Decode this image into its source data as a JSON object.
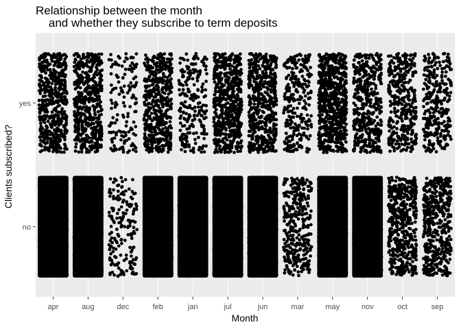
{
  "chart_data": {
    "type": "scatter",
    "subtype": "jitter",
    "title": "Relationship between the month\n    and whether they subscribe to term deposits",
    "xlabel": "Month",
    "ylabel": "Clients subscribed?",
    "categories": [
      "apr",
      "aug",
      "dec",
      "feb",
      "jan",
      "jul",
      "jun",
      "mar",
      "may",
      "nov",
      "oct",
      "sep"
    ],
    "y_categories": [
      "no",
      "yes"
    ],
    "grid": true,
    "legend": "none",
    "colors": {
      "panel": "#ebebeb",
      "grid": "#ffffff",
      "point": "#000000",
      "tick": "#4d4d4d"
    },
    "series": [
      {
        "y": "yes",
        "density": [
          0.55,
          0.55,
          0.12,
          0.5,
          0.2,
          0.6,
          0.55,
          0.25,
          0.75,
          0.45,
          0.35,
          0.3
        ]
      },
      {
        "y": "no",
        "density": [
          0.97,
          0.97,
          0.15,
          0.97,
          0.9,
          0.99,
          0.98,
          0.32,
          0.99,
          0.97,
          0.5,
          0.45
        ]
      }
    ]
  }
}
